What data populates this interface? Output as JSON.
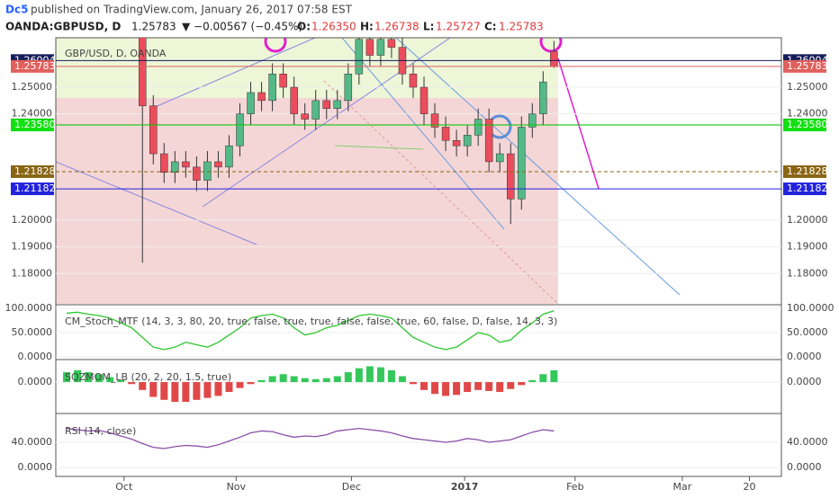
{
  "header": {
    "publisher": "Dc5",
    "published": "published on TradingView.com, January 26, 2017 07:58 EST",
    "symbol": "OANDA:GBPUSD, D",
    "last": "1.25783",
    "change": "▼ −0.00567 (−0.45%)",
    "o_label": "O:",
    "o": "1.26350",
    "h_label": "H:",
    "h": "1.26738",
    "l_label": "L:",
    "l": "1.25727",
    "c_label": "C:",
    "c": "1.25783"
  },
  "chart_data": [
    {
      "type": "candlestick",
      "title": "GBP/USD, D, OANDA",
      "up_color": "#53b987",
      "down_color": "#eb4d5c",
      "x": [
        2,
        4,
        6,
        8,
        10,
        12,
        14,
        16,
        18,
        20,
        22,
        24,
        26,
        28,
        30,
        32,
        34,
        36,
        38,
        40,
        42,
        44,
        46,
        48,
        50,
        52,
        54,
        56,
        58,
        60,
        62,
        64,
        66,
        68,
        70,
        72,
        74,
        76,
        78,
        80,
        82,
        84,
        86,
        88,
        90,
        92
      ],
      "open": [
        1.302,
        1.3,
        1.298,
        1.297,
        1.3,
        1.296,
        1.29,
        1.282,
        1.243,
        1.225,
        1.218,
        1.222,
        1.22,
        1.215,
        1.222,
        1.22,
        1.228,
        1.24,
        1.248,
        1.245,
        1.255,
        1.25,
        1.24,
        1.238,
        1.245,
        1.242,
        1.245,
        1.255,
        1.268,
        1.262,
        1.268,
        1.265,
        1.255,
        1.25,
        1.24,
        1.235,
        1.23,
        1.228,
        1.232,
        1.238,
        1.222,
        1.225,
        1.208,
        1.235,
        1.24,
        1.2635
      ],
      "high": [
        1.306,
        1.304,
        1.302,
        1.304,
        1.304,
        1.3,
        1.294,
        1.286,
        1.247,
        1.229,
        1.226,
        1.226,
        1.224,
        1.226,
        1.226,
        1.232,
        1.244,
        1.252,
        1.252,
        1.259,
        1.259,
        1.254,
        1.244,
        1.249,
        1.249,
        1.249,
        1.259,
        1.272,
        1.272,
        1.272,
        1.272,
        1.269,
        1.259,
        1.254,
        1.244,
        1.239,
        1.234,
        1.236,
        1.242,
        1.242,
        1.229,
        1.229,
        1.239,
        1.244,
        1.256,
        1.26738
      ],
      "low": [
        1.296,
        1.294,
        1.293,
        1.293,
        1.292,
        1.286,
        1.278,
        1.184,
        1.221,
        1.214,
        1.214,
        1.216,
        1.211,
        1.211,
        1.216,
        1.216,
        1.224,
        1.236,
        1.241,
        1.241,
        1.246,
        1.236,
        1.234,
        1.234,
        1.238,
        1.238,
        1.241,
        1.251,
        1.258,
        1.258,
        1.261,
        1.251,
        1.246,
        1.236,
        1.231,
        1.226,
        1.224,
        1.224,
        1.228,
        1.218,
        1.218,
        1.1986,
        1.204,
        1.231,
        1.236,
        1.25727
      ],
      "close": [
        1.3,
        1.298,
        1.297,
        1.3,
        1.296,
        1.29,
        1.282,
        1.243,
        1.225,
        1.218,
        1.222,
        1.22,
        1.215,
        1.222,
        1.22,
        1.228,
        1.24,
        1.248,
        1.245,
        1.255,
        1.25,
        1.24,
        1.238,
        1.245,
        1.242,
        1.245,
        1.255,
        1.268,
        1.262,
        1.268,
        1.265,
        1.255,
        1.25,
        1.24,
        1.235,
        1.23,
        1.228,
        1.232,
        1.238,
        1.222,
        1.225,
        1.208,
        1.235,
        1.24,
        1.252,
        1.25783
      ],
      "xlim": [
        0,
        134
      ],
      "ylim": [
        1.1686,
        1.2686
      ],
      "xticks": [
        {
          "value": 12.6,
          "label": "Oct"
        },
        {
          "value": 33.3,
          "label": "Nov"
        },
        {
          "value": 54.6,
          "label": "Dec"
        },
        {
          "value": 75.5,
          "label": "2017"
        },
        {
          "value": 95.9,
          "label": "Feb"
        },
        {
          "value": 115.7,
          "label": "Mar"
        },
        {
          "value": 128.1,
          "label": "20"
        }
      ],
      "yticks": [
        {
          "value": 1.18,
          "label": "1.18000"
        },
        {
          "value": 1.19,
          "label": "1.19000"
        },
        {
          "value": 1.2,
          "label": "1.20000"
        },
        {
          "value": 1.24,
          "label": "1.24000"
        },
        {
          "value": 1.25,
          "label": "1.25000"
        }
      ],
      "levels": [
        {
          "value": 1.26004,
          "label": "1.26004",
          "color": "#161d5a"
        },
        {
          "value": 1.25783,
          "label": "1.25783",
          "color": "#e0605c"
        },
        {
          "value": 1.23585,
          "label": "1.23585",
          "color": "#000000"
        },
        {
          "value": 1.2358,
          "label": "1.23580",
          "color": "#12e012"
        },
        {
          "value": 1.21828,
          "label": "1.21828",
          "color": "#8a6614"
        },
        {
          "value": 1.21182,
          "label": "1.21182",
          "color": "#2323dd"
        }
      ]
    },
    {
      "type": "line",
      "title": "CM_Stoch_MTF (14, 3, 3, 80, 20, true, false, true, true, false, false, true, 60, false, D, false, 14, 3, 3)",
      "x": [
        2,
        4,
        6,
        8,
        10,
        12,
        14,
        16,
        18,
        20,
        22,
        24,
        26,
        28,
        30,
        32,
        34,
        36,
        38,
        40,
        42,
        44,
        46,
        48,
        50,
        52,
        54,
        56,
        58,
        60,
        62,
        64,
        66,
        68,
        70,
        72,
        74,
        76,
        78,
        80,
        82,
        84,
        86,
        88,
        90,
        92
      ],
      "series": [
        {
          "color": "#2fc62f",
          "values": [
            90,
            92,
            88,
            85,
            80,
            70,
            60,
            40,
            20,
            15,
            20,
            30,
            25,
            20,
            30,
            45,
            60,
            80,
            85,
            88,
            80,
            60,
            45,
            50,
            60,
            65,
            75,
            85,
            88,
            85,
            80,
            60,
            40,
            30,
            20,
            15,
            20,
            35,
            50,
            45,
            30,
            35,
            55,
            70,
            88,
            95
          ]
        }
      ],
      "xlim": [
        0,
        134
      ],
      "ylim": [
        -1.9,
        105.6
      ],
      "yticks": [
        {
          "value": 0,
          "label": "0.0000"
        },
        {
          "value": 50,
          "label": "50.0000"
        },
        {
          "value": 100,
          "label": "100.0000"
        }
      ]
    },
    {
      "type": "histogram",
      "title": "SQZMOM_LB (20, 2, 20, 1.5, true)",
      "up_color": "#34c85a",
      "down_color": "#e04848",
      "x": [
        2,
        4,
        6,
        8,
        10,
        12,
        14,
        16,
        18,
        20,
        22,
        24,
        26,
        28,
        30,
        32,
        34,
        36,
        38,
        40,
        42,
        44,
        46,
        48,
        50,
        52,
        54,
        56,
        58,
        60,
        62,
        64,
        66,
        68,
        70,
        72,
        74,
        76,
        78,
        80,
        82,
        84,
        86,
        88,
        90,
        92
      ],
      "values": [
        0.01,
        0.012,
        0.01,
        0.008,
        0.005,
        0.002,
        -0.002,
        -0.008,
        -0.015,
        -0.018,
        -0.02,
        -0.02,
        -0.018,
        -0.016,
        -0.014,
        -0.01,
        -0.006,
        -0.002,
        0.002,
        0.006,
        0.008,
        0.006,
        0.004,
        0.003,
        0.004,
        0.006,
        0.01,
        0.014,
        0.016,
        0.015,
        0.012,
        0.006,
        -0.002,
        -0.008,
        -0.012,
        -0.014,
        -0.013,
        -0.01,
        -0.008,
        -0.009,
        -0.01,
        -0.007,
        -0.003,
        0.002,
        0.008,
        0.012
      ],
      "xlim": [
        0,
        134
      ],
      "ylim": [
        -0.03,
        0.021
      ],
      "yticks": [
        {
          "value": 0,
          "label": "0.0000"
        }
      ]
    },
    {
      "type": "line",
      "title": "RSI (14, close)",
      "x": [
        2,
        4,
        6,
        8,
        10,
        12,
        14,
        16,
        18,
        20,
        22,
        24,
        26,
        28,
        30,
        32,
        34,
        36,
        38,
        40,
        42,
        44,
        46,
        48,
        50,
        52,
        54,
        56,
        58,
        60,
        62,
        64,
        66,
        68,
        70,
        72,
        74,
        76,
        78,
        80,
        82,
        84,
        86,
        88,
        90,
        92
      ],
      "series": [
        {
          "color": "#8a4fa8",
          "values": [
            62,
            60,
            58,
            59,
            55,
            50,
            45,
            38,
            32,
            30,
            33,
            35,
            34,
            32,
            36,
            42,
            48,
            55,
            58,
            57,
            52,
            48,
            50,
            49,
            52,
            58,
            60,
            62,
            60,
            58,
            55,
            50,
            46,
            44,
            42,
            40,
            42,
            46,
            44,
            40,
            42,
            44,
            50,
            56,
            60,
            58
          ]
        }
      ],
      "xlim": [
        0,
        134
      ],
      "ylim": [
        -14.3,
        82.9
      ],
      "yticks": [
        {
          "value": 0,
          "label": "0.0000"
        },
        {
          "value": 40,
          "label": "40.0000"
        }
      ]
    }
  ]
}
